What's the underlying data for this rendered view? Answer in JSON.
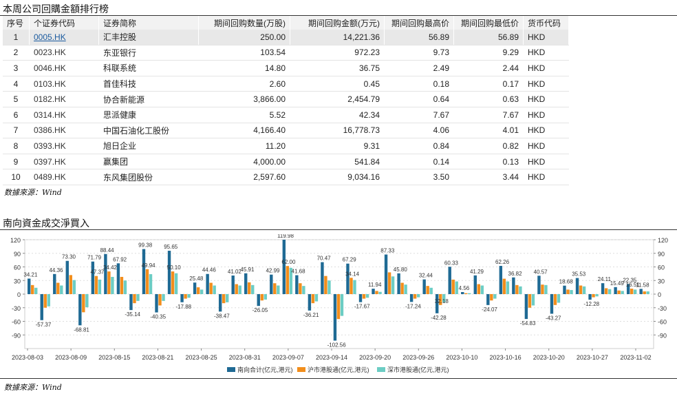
{
  "table_title": "本周公司回購金額排行榜",
  "table": {
    "headers": [
      "序号",
      "个证券代码",
      "证券简称",
      "期间回购数量(万股)",
      "期间回购金额(万元)",
      "期间回购最高价",
      "期间回购最低价",
      "货币代码"
    ],
    "rows": [
      {
        "idx": "1",
        "code": "0005.HK",
        "name": "汇丰控股",
        "qty": "250.00",
        "amt": "14,221.36",
        "hi": "56.89",
        "lo": "56.89",
        "cur": "HKD"
      },
      {
        "idx": "2",
        "code": "0023.HK",
        "name": "东亚银行",
        "qty": "103.54",
        "amt": "972.23",
        "hi": "9.73",
        "lo": "9.29",
        "cur": "HKD"
      },
      {
        "idx": "3",
        "code": "0046.HK",
        "name": "科联系统",
        "qty": "14.80",
        "amt": "36.75",
        "hi": "2.49",
        "lo": "2.44",
        "cur": "HKD"
      },
      {
        "idx": "4",
        "code": "0103.HK",
        "name": "首佳科技",
        "qty": "2.60",
        "amt": "0.45",
        "hi": "0.18",
        "lo": "0.17",
        "cur": "HKD"
      },
      {
        "idx": "5",
        "code": "0182.HK",
        "name": "协合新能源",
        "qty": "3,866.00",
        "amt": "2,454.79",
        "hi": "0.64",
        "lo": "0.63",
        "cur": "HKD"
      },
      {
        "idx": "6",
        "code": "0314.HK",
        "name": "思派健康",
        "qty": "5.52",
        "amt": "42.34",
        "hi": "7.67",
        "lo": "7.67",
        "cur": "HKD"
      },
      {
        "idx": "7",
        "code": "0386.HK",
        "name": "中国石油化工股份",
        "qty": "4,166.40",
        "amt": "16,778.73",
        "hi": "4.06",
        "lo": "4.01",
        "cur": "HKD"
      },
      {
        "idx": "8",
        "code": "0393.HK",
        "name": "旭日企业",
        "qty": "11.20",
        "amt": "9.31",
        "hi": "0.84",
        "lo": "0.82",
        "cur": "HKD"
      },
      {
        "idx": "9",
        "code": "0397.HK",
        "name": "赢集团",
        "qty": "4,000.00",
        "amt": "541.84",
        "hi": "0.14",
        "lo": "0.13",
        "cur": "HKD"
      },
      {
        "idx": "10",
        "code": "0489.HK",
        "name": "东风集团股份",
        "qty": "2,597.60",
        "amt": "9,034.16",
        "hi": "3.50",
        "lo": "3.44",
        "cur": "HKD"
      }
    ]
  },
  "source1": "数據來源：Wind",
  "chart_title": "南向資金成交淨買入",
  "source2": "数據來源：Wind",
  "colors": {
    "s1": "#1f6a94",
    "s2": "#f28e1c",
    "s3": "#6ccdc4",
    "grid": "#dddddd",
    "axis": "#888888"
  },
  "chart_data": {
    "type": "bar",
    "ylim": [
      -120,
      120
    ],
    "yticks": [
      -90,
      -60,
      -30,
      0,
      30,
      60,
      90,
      120
    ],
    "xtick_labels": [
      "2023-08-03",
      "2023-08-09",
      "2023-08-15",
      "2023-08-21",
      "2023-08-25",
      "2023-08-31",
      "2023-09-07",
      "2023-09-14",
      "2023-09-20",
      "2023-09-26",
      "2023-10-10",
      "2023-10-16",
      "2023-10-20",
      "2023-10-27",
      "2023-11-02"
    ],
    "legend": [
      "南向合计(亿元,港元)",
      "沪市港股通(亿元,港元)",
      "深市港股通(亿元,港元)"
    ],
    "series": [
      {
        "name": "南向合计(亿元,港元)",
        "values": [
          34.21,
          -57.37,
          44.36,
          73.3,
          -68.81,
          71.79,
          88.44,
          67.92,
          -35.14,
          99.38,
          -40.35,
          95.65,
          -17.88,
          25.48,
          44.46,
          -38.47,
          41.02,
          45.91,
          -26.05,
          42.99,
          119.98,
          41.68,
          -36.21,
          70.47,
          -102.56,
          67.29,
          -17.67,
          11.94,
          87.33,
          45.8,
          -17.24,
          32.44,
          -42.28,
          60.33,
          4.56,
          41.29,
          -24.07,
          62.26,
          36.82,
          -54.83,
          40.57,
          -43.27,
          18.68,
          35.53,
          -12.28,
          24.11,
          15.49,
          22.35,
          11.58
        ]
      },
      {
        "name": "沪市港股通(亿元,港元)",
        "values": [
          20,
          -30,
          25,
          42,
          -40,
          40,
          50,
          38,
          -20,
          55,
          -25,
          50,
          -10,
          15,
          25,
          -20,
          22,
          26,
          -14,
          24,
          62,
          24,
          -20,
          40,
          -55,
          36,
          -10,
          7,
          48,
          25,
          -10,
          18,
          -24,
          32,
          2,
          22,
          -14,
          34,
          20,
          -30,
          21,
          -24,
          10,
          19,
          -7,
          13,
          8,
          12,
          6
        ]
      },
      {
        "name": "深市港股通(亿元,港元)",
        "values": [
          14,
          -27,
          19,
          31,
          -29,
          32,
          38,
          30,
          -15,
          44,
          -15,
          46,
          -8,
          10,
          19,
          -18,
          19,
          20,
          -12,
          19,
          58,
          18,
          -16,
          30,
          -48,
          31,
          -8,
          5,
          39,
          21,
          -7,
          14,
          -18,
          28,
          2,
          19,
          -10,
          28,
          17,
          -25,
          20,
          -19,
          9,
          17,
          -5,
          11,
          7,
          10,
          6
        ]
      }
    ],
    "labels": [
      "34.21",
      "-57.37",
      "44.36",
      "73.30",
      "-68.81",
      "71.79",
      "88.44",
      "67.92",
      "-35.14",
      "99.38",
      "-40.35",
      "95.65",
      "-17.88",
      "25.48",
      "44.46",
      "-38.47",
      "41.02",
      "45.91",
      "-26.05",
      "42.99",
      "119.98",
      "41.68",
      "-36.21",
      "70.47",
      "-102.56",
      "67.29",
      "-17.67",
      "11.94",
      "87.33",
      "45.80",
      "-17.24",
      "32.44",
      "-42.28",
      "60.33",
      "4.56",
      "41.29",
      "-24.07",
      "62.26",
      "36.82",
      "-54.83",
      "40.57",
      "-43.27",
      "18.68",
      "35.53",
      "-12.28",
      "24.11",
      "15.49",
      "22.35",
      "11.58"
    ],
    "extra_labels": [
      "47.37",
      "34.42",
      "49.94",
      "50.10",
      "62.00",
      "34.14",
      "32.18",
      "16.51"
    ]
  }
}
